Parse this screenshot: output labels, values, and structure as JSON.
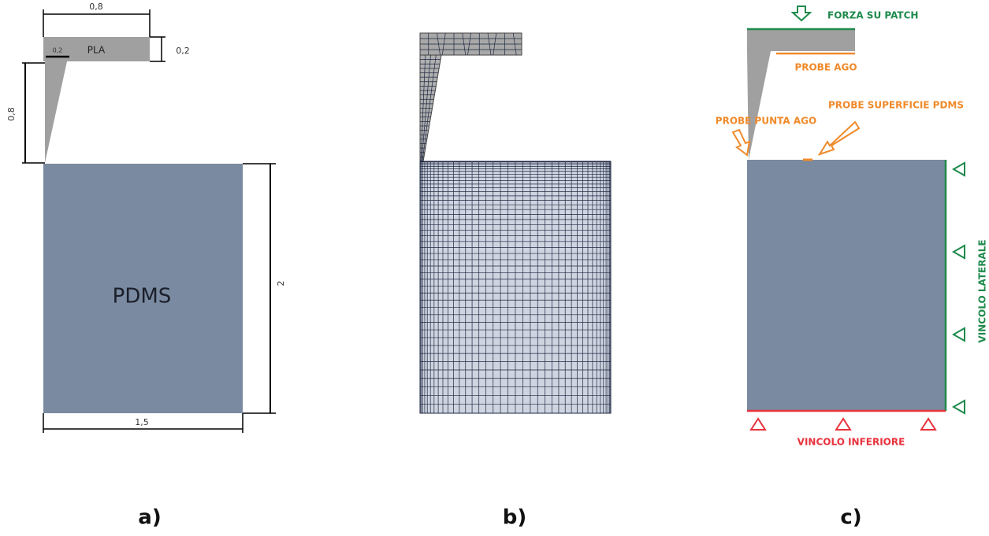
{
  "panel_a": {
    "label": "a)",
    "material_top": "PLA",
    "material_body": "PDMS",
    "dims": {
      "top_width": "0,8",
      "top_height": "0,2",
      "tip_width": "0,2",
      "needle_height": "0,8",
      "body_height": "2",
      "body_width": "1,5"
    }
  },
  "panel_b": {
    "label": "b)"
  },
  "panel_c": {
    "label": "c)",
    "force": "FORZA SU  PATCH",
    "probe_needle": "PROBE AGO",
    "probe_tip": "PROBE PUNTA AGO",
    "probe_surface": "PROBE SUPERFICIE PDMS",
    "lateral": "VINCOLO LATERALE",
    "bottom": "VINCOLO INFERIORE"
  }
}
